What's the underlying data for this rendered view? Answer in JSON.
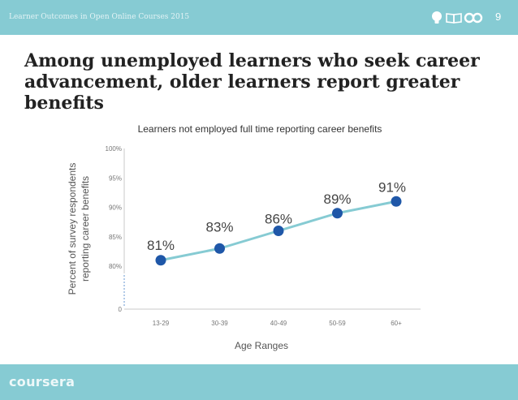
{
  "header": {
    "doc_title": "Learner Outcomes in Open Online Courses 2015",
    "page_number": "9",
    "icons": [
      "lightbulb-icon",
      "book-icon",
      "coursera-infinity-icon"
    ]
  },
  "headline": "Among unemployed learners who seek career advancement, older learners report greater benefits",
  "footer": {
    "brand": "coursera"
  },
  "colors": {
    "bar": "#86cbd3",
    "line": "#86cbd3",
    "marker": "#1f57a8",
    "headline": "#222222"
  },
  "chart_data": {
    "type": "line",
    "title": "Learners not employed full time reporting career benefits",
    "xlabel": "Age Ranges",
    "ylabel": [
      "Percent of survey respondents",
      "reporting career benefits"
    ],
    "categories": [
      "13-29",
      "30-39",
      "40-49",
      "50-59",
      "60+"
    ],
    "values": [
      81,
      83,
      86,
      89,
      91
    ],
    "data_labels": [
      "81%",
      "83%",
      "86%",
      "89%",
      "91%"
    ],
    "yticks": [
      {
        "value": 100,
        "label": "100%"
      },
      {
        "value": 95,
        "label": "95%"
      },
      {
        "value": 90,
        "label": "90%"
      },
      {
        "value": 85,
        "label": "85%"
      },
      {
        "value": 80,
        "label": "80%"
      },
      {
        "value": 0,
        "label": "0"
      }
    ],
    "ylim": [
      80,
      100
    ],
    "axis_break": true,
    "grid": false,
    "legend": "none"
  }
}
